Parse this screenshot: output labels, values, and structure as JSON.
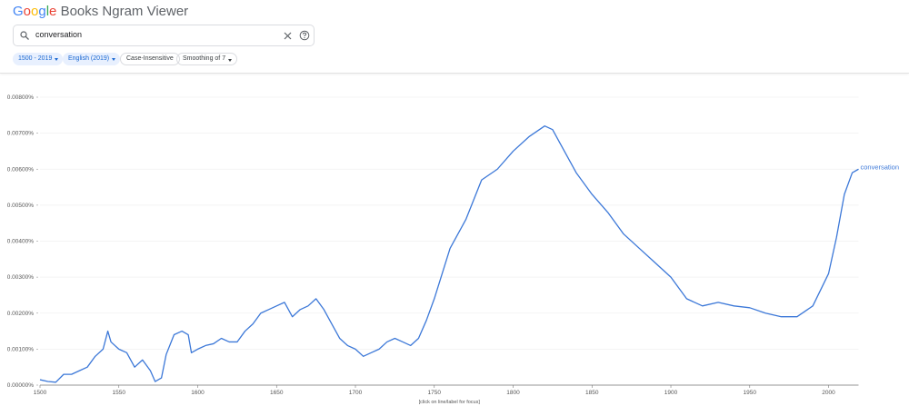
{
  "header": {
    "logo": "Google",
    "title": "Books Ngram Viewer"
  },
  "search": {
    "query": "conversation"
  },
  "controls": [
    "1500 - 2019",
    "English (2019)",
    "Case-Insensitive",
    "Smoothing of 7"
  ],
  "chart_data": {
    "type": "line",
    "x": [
      1500,
      1505,
      1510,
      1515,
      1520,
      1525,
      1530,
      1535,
      1540,
      1543,
      1545,
      1550,
      1555,
      1560,
      1565,
      1570,
      1573,
      1577,
      1580,
      1585,
      1590,
      1594,
      1596,
      1600,
      1605,
      1610,
      1615,
      1620,
      1625,
      1630,
      1635,
      1640,
      1645,
      1650,
      1655,
      1660,
      1665,
      1670,
      1675,
      1680,
      1685,
      1690,
      1695,
      1700,
      1705,
      1710,
      1715,
      1720,
      1725,
      1730,
      1735,
      1740,
      1745,
      1750,
      1760,
      1770,
      1780,
      1790,
      1800,
      1810,
      1820,
      1825,
      1830,
      1840,
      1850,
      1860,
      1870,
      1880,
      1890,
      1900,
      1910,
      1920,
      1930,
      1940,
      1950,
      1960,
      1970,
      1980,
      1990,
      2000,
      2005,
      2010,
      2015,
      2019
    ],
    "series": [
      {
        "name": "conversation",
        "color": "#3c78d8",
        "values": [
          0.00015,
          0.0001,
          8e-05,
          0.0003,
          0.0003,
          0.0004,
          0.0005,
          0.0008,
          0.001,
          0.0015,
          0.0012,
          0.001,
          0.0009,
          0.0005,
          0.0007,
          0.0004,
          0.0001,
          0.0002,
          0.00085,
          0.0014,
          0.0015,
          0.0014,
          0.0009,
          0.001,
          0.0011,
          0.00115,
          0.0013,
          0.0012,
          0.0012,
          0.0015,
          0.0017,
          0.002,
          0.0021,
          0.0022,
          0.0023,
          0.0019,
          0.0021,
          0.0022,
          0.0024,
          0.0021,
          0.0017,
          0.0013,
          0.0011,
          0.001,
          0.0008,
          0.0009,
          0.001,
          0.0012,
          0.0013,
          0.0012,
          0.0011,
          0.0013,
          0.0018,
          0.0024,
          0.0038,
          0.0046,
          0.0057,
          0.006,
          0.0065,
          0.0069,
          0.0072,
          0.0071,
          0.0067,
          0.0059,
          0.0053,
          0.0048,
          0.0042,
          0.0038,
          0.0034,
          0.003,
          0.0024,
          0.0022,
          0.0023,
          0.0022,
          0.00215,
          0.002,
          0.0019,
          0.0019,
          0.0022,
          0.0031,
          0.0041,
          0.0053,
          0.0059,
          0.006
        ]
      }
    ],
    "xlim": [
      1500,
      2019
    ],
    "ylim": [
      0,
      0.008
    ],
    "xticks": [
      1500,
      1550,
      1600,
      1650,
      1700,
      1750,
      1800,
      1850,
      1900,
      1950,
      2000
    ],
    "yticks": [
      {
        "value": 0,
        "label": "0.00000%"
      },
      {
        "value": 0.001,
        "label": "0.00100%"
      },
      {
        "value": 0.002,
        "label": "0.00200%"
      },
      {
        "value": 0.003,
        "label": "0.00300%"
      },
      {
        "value": 0.004,
        "label": "0.00400%"
      },
      {
        "value": 0.005,
        "label": "0.00500%"
      },
      {
        "value": 0.006,
        "label": "0.00600%"
      },
      {
        "value": 0.007,
        "label": "0.00700%"
      },
      {
        "value": 0.008,
        "label": "0.00800%"
      }
    ],
    "grid": true,
    "note": "[click on line/label for focus]"
  }
}
